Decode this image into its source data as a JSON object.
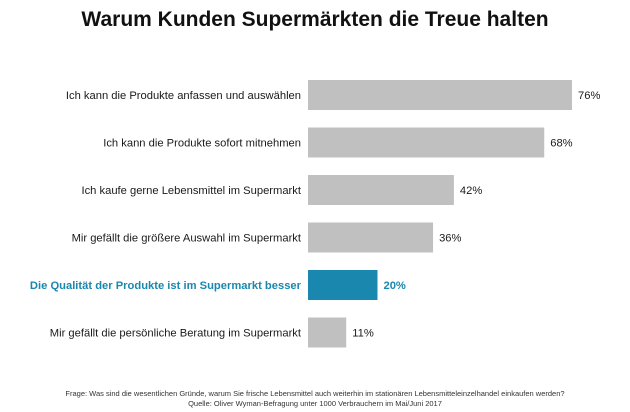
{
  "chart_data": {
    "type": "bar",
    "orientation": "horizontal",
    "title": "Warum Kunden Supermärkten die Treue halten",
    "categories": [
      "Ich kann die Produkte anfassen und auswählen",
      "Ich kann die Produkte sofort mitnehmen",
      "Ich kaufe gerne Lebensmittel im Supermarkt",
      "Mir gefällt die größere Auswahl im Supermarkt",
      "Die Qualität der Produkte ist im Supermarkt besser",
      "Mir gefällt die persönliche Beratung im Supermarkt"
    ],
    "values": [
      76,
      68,
      42,
      36,
      20,
      11
    ],
    "value_labels": [
      "76%",
      "68%",
      "42%",
      "36%",
      "20%",
      "11%"
    ],
    "unit": "%",
    "xlim": [
      0,
      100
    ],
    "highlight_index": 4,
    "colors": {
      "bar": "#c0c0c0",
      "highlight": "#1a87ae",
      "text": "#1a1a1a",
      "highlight_text": "#1a87ae"
    },
    "grid": false,
    "legend": "none"
  },
  "footnote": {
    "question": "Frage: Was sind die wesentlichen Gründe, warum Sie frische Lebensmittel auch weiterhin im stationären Lebensmitteleinzelhandel einkaufen werden?",
    "source": "Quelle: Oliver Wyman-Befragung unter 1000 Verbrauchern im Mai/Juni 2017"
  }
}
